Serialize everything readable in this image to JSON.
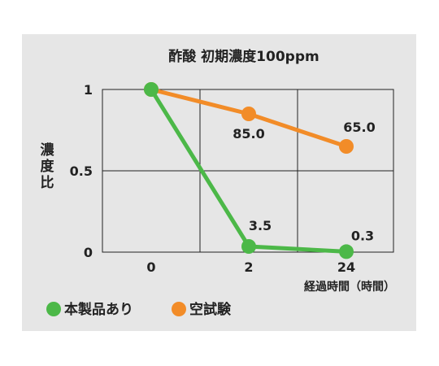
{
  "chart_data": {
    "type": "line",
    "title": "酢酸 初期濃度100ppm",
    "xlabel": "経過時間（時間）",
    "ylabel": "濃度比",
    "categories": [
      "0",
      "2",
      "24"
    ],
    "yticks": [
      "0",
      "0.5",
      "1"
    ],
    "ylim": [
      0,
      1
    ],
    "grid": true,
    "legend_position": "bottom-left",
    "series": [
      {
        "name": "本製品あり",
        "color": "#4cb848",
        "values": [
          1,
          0.035,
          0.003
        ],
        "labels": [
          "",
          "3.5",
          "0.3"
        ]
      },
      {
        "name": "空試験",
        "color": "#f28c28",
        "values": [
          1,
          0.85,
          0.65
        ],
        "labels": [
          "",
          "85.0",
          "65.0"
        ]
      }
    ]
  }
}
